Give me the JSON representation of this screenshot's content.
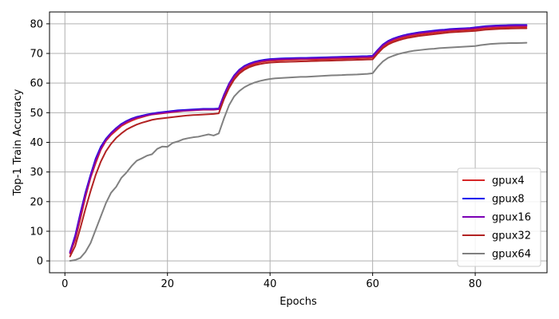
{
  "chart_data": {
    "type": "line",
    "title": "",
    "xlabel": "Epochs",
    "ylabel": "Top-1 Train Accuracy",
    "xlim": [
      -3,
      94
    ],
    "ylim": [
      -4,
      84
    ],
    "xticks": [
      0,
      20,
      40,
      60,
      80
    ],
    "yticks": [
      0,
      10,
      20,
      30,
      40,
      50,
      60,
      70,
      80
    ],
    "grid": true,
    "legend_position": "lower-right",
    "x": [
      1,
      2,
      3,
      4,
      5,
      6,
      7,
      8,
      9,
      10,
      11,
      12,
      13,
      14,
      15,
      16,
      17,
      18,
      19,
      20,
      21,
      22,
      23,
      24,
      25,
      26,
      27,
      28,
      29,
      30,
      31,
      32,
      33,
      34,
      35,
      36,
      37,
      38,
      39,
      40,
      41,
      42,
      43,
      44,
      45,
      46,
      47,
      48,
      49,
      50,
      51,
      52,
      53,
      54,
      55,
      56,
      57,
      58,
      59,
      60,
      61,
      62,
      63,
      64,
      65,
      66,
      67,
      68,
      69,
      70,
      71,
      72,
      73,
      74,
      75,
      76,
      77,
      78,
      79,
      80,
      81,
      82,
      83,
      84,
      85,
      86,
      87,
      88,
      89,
      90
    ],
    "series": [
      {
        "name": "gpux4",
        "color": "#d62728",
        "values": [
          2.5,
          7,
          14,
          21.5,
          28,
          33,
          37.5,
          40.5,
          42.5,
          44,
          45.5,
          46.5,
          47.3,
          48,
          48.5,
          49,
          49.4,
          49.6,
          49.8,
          50,
          50.2,
          50.4,
          50.6,
          50.7,
          50.8,
          50.9,
          51,
          51,
          51,
          51.2,
          55.5,
          59,
          61.8,
          63.8,
          65,
          65.9,
          66.5,
          67,
          67.3,
          67.5,
          67.6,
          67.7,
          67.8,
          67.85,
          67.9,
          67.95,
          68,
          68,
          68,
          68.05,
          68.1,
          68.15,
          68.2,
          68.25,
          68.3,
          68.35,
          68.4,
          68.45,
          68.5,
          68.6,
          70.5,
          72.3,
          73.5,
          74.3,
          74.9,
          75.4,
          75.8,
          76.1,
          76.4,
          76.6,
          76.8,
          77,
          77.2,
          77.4,
          77.6,
          77.7,
          77.8,
          77.9,
          78,
          78.1,
          78.3,
          78.5,
          78.6,
          78.7,
          78.8,
          78.85,
          78.9,
          78.95,
          79,
          79
        ]
      },
      {
        "name": "gpux8",
        "color": "#0000ee",
        "values": [
          3,
          8.5,
          16,
          23,
          29,
          34.5,
          38.5,
          41.2,
          43.2,
          44.8,
          46.2,
          47.2,
          48,
          48.6,
          49,
          49.4,
          49.7,
          50,
          50.2,
          50.4,
          50.6,
          50.8,
          50.9,
          51,
          51.1,
          51.2,
          51.3,
          51.3,
          51.3,
          51.4,
          56,
          59.8,
          62.6,
          64.5,
          65.8,
          66.6,
          67.2,
          67.6,
          67.9,
          68.1,
          68.2,
          68.3,
          68.35,
          68.4,
          68.45,
          68.5,
          68.5,
          68.55,
          68.6,
          68.65,
          68.7,
          68.75,
          68.8,
          68.85,
          68.9,
          68.95,
          69,
          69.05,
          69.1,
          69.2,
          71.2,
          73,
          74.2,
          75,
          75.6,
          76.1,
          76.5,
          76.8,
          77.1,
          77.3,
          77.5,
          77.7,
          77.9,
          78,
          78.2,
          78.3,
          78.4,
          78.5,
          78.6,
          78.8,
          79,
          79.2,
          79.3,
          79.4,
          79.45,
          79.5,
          79.55,
          79.6,
          79.6,
          79.6
        ]
      },
      {
        "name": "gpux16",
        "color": "#7b00b5",
        "values": [
          2.8,
          8,
          15.5,
          22.5,
          28.5,
          34,
          38,
          40.9,
          43,
          44.6,
          46,
          47,
          47.8,
          48.4,
          48.8,
          49.2,
          49.5,
          49.8,
          50,
          50.2,
          50.4,
          50.6,
          50.7,
          50.8,
          50.9,
          51,
          51.1,
          51.1,
          51.1,
          51.2,
          55.8,
          59.6,
          62.4,
          64.3,
          65.6,
          66.4,
          67,
          67.4,
          67.7,
          67.9,
          68,
          68.1,
          68.15,
          68.2,
          68.25,
          68.3,
          68.3,
          68.35,
          68.4,
          68.45,
          68.5,
          68.55,
          68.6,
          68.65,
          68.7,
          68.75,
          68.8,
          68.85,
          68.9,
          69,
          71,
          72.8,
          74,
          74.8,
          75.4,
          75.9,
          76.3,
          76.6,
          76.9,
          77.1,
          77.3,
          77.5,
          77.7,
          77.8,
          78,
          78.1,
          78.2,
          78.3,
          78.4,
          78.6,
          78.8,
          79,
          79.1,
          79.2,
          79.25,
          79.3,
          79.35,
          79.4,
          79.4,
          79.4
        ]
      },
      {
        "name": "gpux32",
        "color": "#b22222",
        "values": [
          1.5,
          5,
          11,
          17.5,
          23.5,
          29,
          33.5,
          37,
          39.5,
          41.5,
          43,
          44.3,
          45.2,
          46,
          46.6,
          47.1,
          47.6,
          47.9,
          48.1,
          48.3,
          48.5,
          48.7,
          48.9,
          49.1,
          49.2,
          49.3,
          49.4,
          49.5,
          49.6,
          49.8,
          54.5,
          58.3,
          61.2,
          63.2,
          64.5,
          65.4,
          66,
          66.4,
          66.7,
          66.9,
          67,
          67.1,
          67.15,
          67.2,
          67.25,
          67.3,
          67.35,
          67.4,
          67.45,
          67.5,
          67.55,
          67.6,
          67.65,
          67.7,
          67.75,
          67.8,
          67.85,
          67.9,
          67.95,
          68,
          70,
          71.8,
          73,
          73.8,
          74.4,
          74.9,
          75.3,
          75.6,
          75.9,
          76.1,
          76.3,
          76.5,
          76.7,
          76.9,
          77.1,
          77.2,
          77.3,
          77.4,
          77.5,
          77.6,
          77.8,
          78,
          78.1,
          78.2,
          78.3,
          78.35,
          78.4,
          78.45,
          78.5,
          78.5
        ]
      },
      {
        "name": "gpux64",
        "color": "#808080",
        "values": [
          0,
          0.3,
          1,
          3,
          6,
          10.5,
          15,
          19.5,
          23,
          25,
          28,
          29.8,
          32,
          33.8,
          34.6,
          35.5,
          36,
          37.8,
          38.6,
          38.5,
          39.8,
          40.3,
          41,
          41.4,
          41.7,
          41.9,
          42.3,
          42.7,
          42.3,
          43,
          48,
          52.5,
          55.5,
          57.3,
          58.6,
          59.5,
          60.2,
          60.7,
          61.1,
          61.4,
          61.6,
          61.7,
          61.8,
          61.9,
          62,
          62.1,
          62.1,
          62.2,
          62.3,
          62.4,
          62.5,
          62.6,
          62.65,
          62.7,
          62.8,
          62.85,
          62.9,
          63,
          63.1,
          63.3,
          65.5,
          67.3,
          68.5,
          69.2,
          69.8,
          70.2,
          70.6,
          70.9,
          71.1,
          71.3,
          71.5,
          71.6,
          71.8,
          71.9,
          72,
          72.1,
          72.2,
          72.3,
          72.4,
          72.5,
          72.8,
          73,
          73.2,
          73.3,
          73.4,
          73.45,
          73.5,
          73.5,
          73.55,
          73.6
        ]
      }
    ]
  }
}
